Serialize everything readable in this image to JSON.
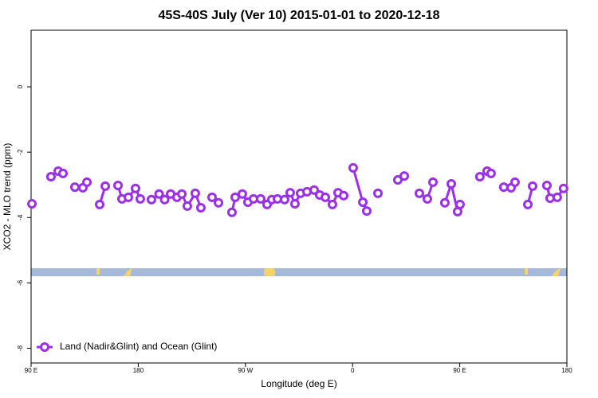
{
  "chart_data": {
    "type": "line",
    "title": "45S-40S July (Ver 10)   2015-01-01 to 2020-12-18",
    "x_label": "Longitude (deg E)",
    "y_label": "XCO2 - MLO trend (ppm)",
    "xlim": [
      90,
      540
    ],
    "ylim": [
      -8.45,
      1.73
    ],
    "xticks": [
      {
        "value": 90,
        "label": "90 E"
      },
      180,
      {
        "value": 270,
        "label": "90 W"
      },
      {
        "value": 360,
        "label": "0"
      },
      {
        "value": 450,
        "label": "90 E"
      },
      {
        "value": 540,
        "label": "180"
      }
    ],
    "yticks": [
      0,
      -2,
      -4,
      -6,
      -8
    ],
    "legend": "bottom-left",
    "grid": false,
    "series": [
      {
        "name": "Land (Nadir&Glint) and Ocean (Glint)",
        "color": "#9b30e8",
        "x": [
          90.7,
          null,
          106.7,
          112.8,
          116.8,
          null,
          126.8,
          133.5,
          136.9,
          null,
          147.6,
          152.3,
          null,
          163,
          166.3,
          171.7,
          177.7,
          181.7,
          null,
          191.1,
          197.5,
          202.2,
          207.2,
          212.5,
          216.6,
          221.2,
          227.9,
          232.6,
          null,
          242,
          247.4,
          null,
          258.7,
          261.4,
          267.4,
          272.1,
          276.8,
          282.8,
          288.2,
          292.2,
          296.9,
          302.9,
          307.6,
          311.6,
          316.3,
          321.7,
          327.7,
          332.4,
          337.1,
          343.1,
          347.8,
          352.5,
          null,
          360.5,
          368.6,
          371.9,
          null,
          381.3,
          null,
          398,
          403.4,
          null,
          416.1,
          422.8,
          427.5,
          null,
          437.5,
          442.9,
          448.2,
          450.2,
          null,
          466.9,
          473,
          476.3,
          null,
          487,
          493.1,
          496.4,
          null,
          507.2,
          511.2,
          null,
          523.2,
          525.9,
          531.9,
          537.2
        ],
        "values": [
          -3.58,
          null,
          -2.75,
          -2.58,
          -2.65,
          null,
          -3.07,
          -3.09,
          -2.92,
          null,
          -3.6,
          -3.04,
          null,
          -3.02,
          -3.43,
          -3.38,
          -3.11,
          -3.43,
          null,
          -3.45,
          -3.28,
          -3.45,
          -3.28,
          -3.38,
          -3.28,
          -3.65,
          -3.26,
          -3.7,
          null,
          -3.38,
          -3.55,
          null,
          -3.84,
          -3.38,
          -3.28,
          -3.53,
          -3.43,
          -3.43,
          -3.6,
          -3.45,
          -3.43,
          -3.45,
          -3.24,
          -3.58,
          -3.26,
          -3.21,
          -3.16,
          -3.31,
          -3.38,
          -3.6,
          -3.24,
          -3.33,
          null,
          -2.48,
          -3.53,
          -3.8,
          null,
          -3.26,
          null,
          -2.85,
          -2.73,
          null,
          -3.26,
          -3.43,
          -2.92,
          null,
          -3.55,
          -2.97,
          -3.82,
          -3.6,
          null,
          -2.75,
          -2.58,
          -2.65,
          null,
          -3.07,
          -3.09,
          -2.92,
          null,
          -3.6,
          -3.04,
          null,
          -3.02,
          -3.41,
          -3.38,
          -3.11
        ]
      }
    ]
  }
}
